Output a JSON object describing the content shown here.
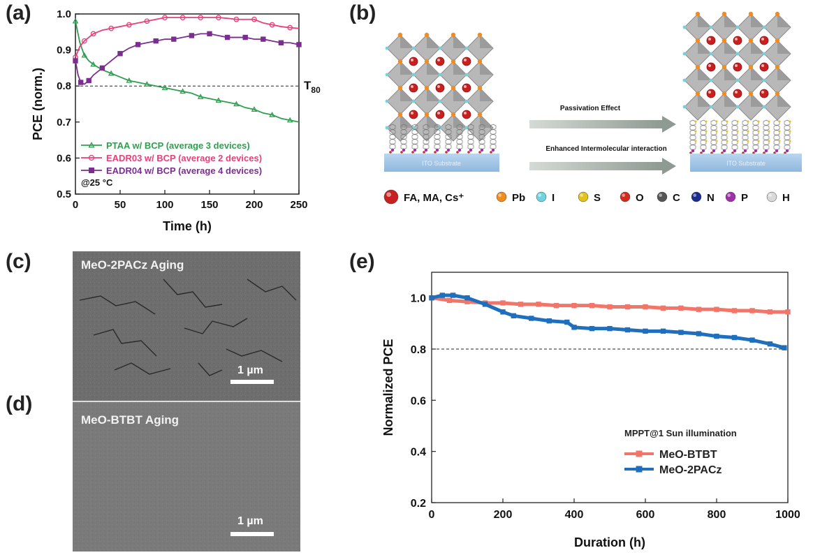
{
  "panel_labels": {
    "a": "(a)",
    "b": "(b)",
    "c": "(c)",
    "d": "(d)",
    "e": "(e)"
  },
  "chart_data": [
    {
      "panel": "(a)",
      "type": "line",
      "xlabel": "Time (h)",
      "ylabel": "PCE (norm.)",
      "xlim": [
        0,
        250
      ],
      "ylim": [
        0.5,
        1.0
      ],
      "xticks": [
        "0",
        "50",
        "100",
        "150",
        "200",
        "250"
      ],
      "yticks": [
        "0.5",
        "0.6",
        "0.7",
        "0.8",
        "0.9",
        "1.0"
      ],
      "reference_line": {
        "y": 0.8,
        "style": "dashed",
        "label_main": "T",
        "label_sub": "80"
      },
      "annotation": "@25 °C",
      "legend_position": "bottom-left",
      "series": [
        {
          "name": "PTAA w/ BCP (average 3 devices)",
          "color": "#2e9e4f",
          "marker": "triangle",
          "x": [
            0,
            5,
            10,
            15,
            20,
            30,
            40,
            50,
            60,
            70,
            80,
            90,
            100,
            110,
            120,
            130,
            140,
            150,
            160,
            170,
            180,
            190,
            200,
            210,
            220,
            230,
            240,
            250
          ],
          "y": [
            0.98,
            0.92,
            0.885,
            0.87,
            0.86,
            0.845,
            0.835,
            0.825,
            0.815,
            0.81,
            0.805,
            0.8,
            0.795,
            0.79,
            0.785,
            0.78,
            0.77,
            0.765,
            0.76,
            0.755,
            0.75,
            0.74,
            0.735,
            0.725,
            0.72,
            0.71,
            0.705,
            0.7
          ]
        },
        {
          "name": "EADR03 w/ BCP (average 2 devices)",
          "color": "#e83e7a",
          "marker": "circle",
          "x": [
            0,
            5,
            10,
            15,
            20,
            30,
            40,
            50,
            60,
            70,
            80,
            90,
            100,
            110,
            120,
            130,
            140,
            150,
            160,
            170,
            180,
            190,
            200,
            210,
            220,
            230,
            240,
            250
          ],
          "y": [
            0.88,
            0.91,
            0.925,
            0.935,
            0.945,
            0.955,
            0.96,
            0.965,
            0.97,
            0.975,
            0.98,
            0.985,
            0.99,
            0.99,
            0.99,
            0.99,
            0.99,
            0.99,
            0.99,
            0.988,
            0.985,
            0.985,
            0.985,
            0.975,
            0.97,
            0.965,
            0.962,
            0.96
          ]
        },
        {
          "name": "EADR04 w/ BCP (average 4 devices)",
          "color": "#7a2e8e",
          "marker": "square",
          "x": [
            0,
            3,
            6,
            10,
            15,
            20,
            30,
            40,
            50,
            60,
            70,
            80,
            90,
            100,
            110,
            120,
            130,
            140,
            150,
            160,
            170,
            180,
            190,
            200,
            210,
            220,
            230,
            240,
            250
          ],
          "y": [
            0.87,
            0.83,
            0.81,
            0.805,
            0.815,
            0.83,
            0.85,
            0.87,
            0.89,
            0.905,
            0.915,
            0.92,
            0.925,
            0.93,
            0.93,
            0.935,
            0.94,
            0.945,
            0.945,
            0.94,
            0.935,
            0.935,
            0.935,
            0.93,
            0.93,
            0.925,
            0.92,
            0.92,
            0.915
          ]
        }
      ]
    },
    {
      "panel": "(e)",
      "type": "line",
      "xlabel": "Duration (h)",
      "ylabel": "Normalized PCE",
      "xlim": [
        0,
        1000
      ],
      "ylim": [
        0.2,
        1.1
      ],
      "xticks": [
        "0",
        "200",
        "400",
        "600",
        "800",
        "1000"
      ],
      "yticks": [
        "0.2",
        "0.4",
        "0.6",
        "0.8",
        "1.0"
      ],
      "reference_line": {
        "y": 0.8,
        "style": "dashed"
      },
      "legend_title": "MPPT@1 Sun illumination",
      "legend_position": "bottom-right",
      "series": [
        {
          "name": "MeO-BTBT",
          "color": "#f2756a",
          "marker": "square",
          "x": [
            0,
            50,
            100,
            150,
            200,
            250,
            300,
            350,
            400,
            450,
            500,
            550,
            600,
            650,
            700,
            750,
            800,
            850,
            900,
            950,
            1000
          ],
          "y": [
            1.0,
            0.99,
            0.985,
            0.98,
            0.98,
            0.975,
            0.975,
            0.97,
            0.97,
            0.97,
            0.965,
            0.965,
            0.965,
            0.96,
            0.96,
            0.955,
            0.955,
            0.95,
            0.95,
            0.945,
            0.945
          ]
        },
        {
          "name": "MeO-2PACz",
          "color": "#1f6fbd",
          "marker": "square",
          "x": [
            0,
            30,
            60,
            100,
            150,
            200,
            230,
            280,
            330,
            380,
            400,
            450,
            500,
            550,
            600,
            650,
            700,
            750,
            800,
            850,
            900,
            950,
            990
          ],
          "y": [
            1.0,
            1.01,
            1.01,
            1.0,
            0.975,
            0.945,
            0.93,
            0.92,
            0.91,
            0.905,
            0.885,
            0.88,
            0.88,
            0.875,
            0.87,
            0.87,
            0.865,
            0.86,
            0.85,
            0.845,
            0.835,
            0.82,
            0.805
          ]
        }
      ]
    }
  ],
  "schematic": {
    "arrow_top": "Passivation Effect",
    "arrow_bottom": "Enhanced Intermolecular interaction",
    "substrate_left": "ITO Substrate",
    "substrate_right": "ITO Substrate",
    "legend": [
      {
        "label": "FA, MA, Cs⁺",
        "color": "#c62020"
      },
      {
        "label": "Pb",
        "color": "#f28c1e"
      },
      {
        "label": "I",
        "color": "#6fd3e0"
      },
      {
        "label": "S",
        "color": "#e3c21a"
      },
      {
        "label": "O",
        "color": "#d22b1c"
      },
      {
        "label": "C",
        "color": "#555555"
      },
      {
        "label": "N",
        "color": "#1a2d8f"
      },
      {
        "label": "P",
        "color": "#a030a8"
      },
      {
        "label": "H",
        "color": "#d9d9d9"
      }
    ]
  },
  "sem": {
    "c_title": "MeO-2PACz Aging",
    "d_title": "MeO-BTBT Aging",
    "scale_c": "1 µm",
    "scale_d": "1 µm"
  }
}
